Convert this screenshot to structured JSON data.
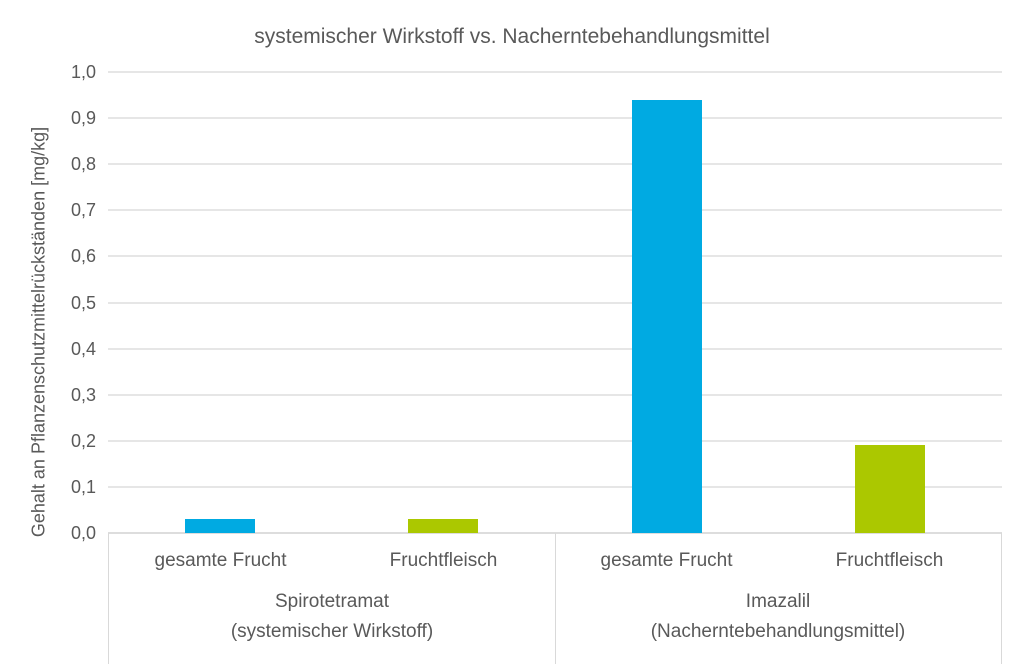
{
  "chart_data": {
    "type": "bar",
    "title": "systemischer Wirkstoff vs. Nacherntebehandlungsmittel",
    "xlabel": "",
    "ylabel": "Gehalt an Pflanzenschutzmittelrückständen [mg/kg]",
    "ylim": [
      0,
      1.0
    ],
    "ytick_step": 0.1,
    "decimal_separator": ",",
    "grid": true,
    "legend": "none",
    "categories": [
      "gesamte Frucht",
      "Fruchtfleisch",
      "gesamte Frucht",
      "Fruchtfleisch"
    ],
    "values": [
      0.03,
      0.03,
      0.94,
      0.19
    ],
    "groups": [
      {
        "label_line1": "Spirotetramat",
        "label_line2": "(systemischer Wirkstoff)",
        "bars": [
          {
            "category": "gesamte Frucht",
            "value": 0.03,
            "color_key": "blue"
          },
          {
            "category": "Fruchtfleisch",
            "value": 0.03,
            "color_key": "green"
          }
        ]
      },
      {
        "label_line1": "Imazalil",
        "label_line2": "(Nacherntebehandlungsmittel)",
        "bars": [
          {
            "category": "gesamte Frucht",
            "value": 0.94,
            "color_key": "blue"
          },
          {
            "category": "Fruchtfleisch",
            "value": 0.19,
            "color_key": "green"
          }
        ]
      }
    ],
    "colors": {
      "blue": "#00AAE2",
      "green": "#ABC800"
    },
    "gridline_color": "#E6E6E6",
    "axis_border_color": "#D9D9D9",
    "text_color": "#595959"
  }
}
